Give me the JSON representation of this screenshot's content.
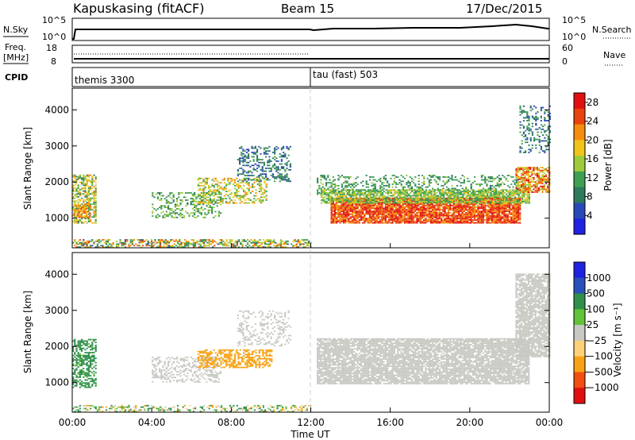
{
  "header": {
    "station": "Kapuskasing (fitACF)",
    "beam": "Beam 15",
    "date": "17/Dec/2015"
  },
  "panels": {
    "nsky": {
      "left_label": "N.Sky",
      "right_label": "N.Search",
      "left_ticks": [
        "10^5",
        "10^0"
      ],
      "right_ticks": [
        "10^5",
        "10^0"
      ]
    },
    "freq": {
      "left_label": "Freq.",
      "left_unit": "[MHz]",
      "right_label": "Nave",
      "left_ticks": [
        "18",
        "8"
      ],
      "right_ticks": [
        "60",
        "0"
      ]
    },
    "cpid": {
      "label": "CPID",
      "modes": [
        "themis 3300",
        "tau (fast) 503"
      ],
      "switch_hour": 12
    }
  },
  "colors": {
    "power": [
      "#1f22e0",
      "#2b48b8",
      "#2d7a5c",
      "#3f9f52",
      "#9ecb3c",
      "#f0c419",
      "#f58d0f",
      "#e8430d",
      "#e10f0f"
    ],
    "velocity": [
      "#e10f0f",
      "#f24e11",
      "#f7a215",
      "#ffd27a",
      "#c9c9c3",
      "#c9c9c3",
      "#62c23a",
      "#2f8f4a",
      "#2b4fb8",
      "#1f22e0"
    ]
  },
  "chart_data": [
    {
      "type": "heatmap",
      "name": "power",
      "ylabel": "Slant Range [km]",
      "yticks": [
        "1000",
        "2000",
        "3000",
        "4000"
      ],
      "ylim": [
        180,
        4600
      ],
      "colorbar_label": "Power [dB]",
      "colorbar_ticks": [
        "4",
        "8",
        "12",
        "16",
        "20",
        "24",
        "28"
      ],
      "clim": [
        0,
        30
      ],
      "regions": [
        {
          "h": [
            0.0,
            1.2
          ],
          "r": [
            850,
            2200
          ],
          "v": [
            8,
            22
          ],
          "d": 0.6
        },
        {
          "h": [
            0.05,
            0.9
          ],
          "r": [
            1000,
            1400
          ],
          "v": [
            18,
            26
          ],
          "d": 0.7
        },
        {
          "h": [
            4.0,
            7.5
          ],
          "r": [
            1000,
            1700
          ],
          "v": [
            8,
            16
          ],
          "d": 0.35
        },
        {
          "h": [
            6.3,
            9.8
          ],
          "r": [
            1400,
            2100
          ],
          "v": [
            10,
            22
          ],
          "d": 0.45
        },
        {
          "h": [
            8.3,
            11.0
          ],
          "r": [
            2000,
            3000
          ],
          "v": [
            4,
            12
          ],
          "d": 0.35
        },
        {
          "h": [
            12.3,
            22.8
          ],
          "r": [
            1600,
            2200
          ],
          "v": [
            8,
            14
          ],
          "d": 0.3
        },
        {
          "h": [
            13.0,
            22.5
          ],
          "r": [
            850,
            1550
          ],
          "v": [
            20,
            30
          ],
          "d": 0.9
        },
        {
          "h": [
            12.5,
            23.0
          ],
          "r": [
            1400,
            1800
          ],
          "v": [
            10,
            18
          ],
          "d": 0.75
        },
        {
          "h": [
            22.3,
            24.0
          ],
          "r": [
            1700,
            2400
          ],
          "v": [
            14,
            28
          ],
          "d": 0.7
        },
        {
          "h": [
            22.5,
            24.0
          ],
          "r": [
            2800,
            4100
          ],
          "v": [
            4,
            12
          ],
          "d": 0.3
        },
        {
          "h": [
            0.0,
            12.0
          ],
          "r": [
            180,
            420
          ],
          "v": [
            6,
            26
          ],
          "d": 0.55
        }
      ]
    },
    {
      "type": "heatmap",
      "name": "velocity",
      "ylabel": "Slant Range [km]",
      "yticks": [
        "1000",
        "2000",
        "3000",
        "4000"
      ],
      "ylim": [
        180,
        4600
      ],
      "colorbar_label": "Velocity [m s⁻¹]",
      "colorbar_ticks": [
        "1000",
        "500",
        "100",
        "25",
        "−25",
        "−100",
        "−500",
        "−1000"
      ],
      "xlabel": "Time UT",
      "xticks": [
        "00:00",
        "04:00",
        "08:00",
        "12:00",
        "16:00",
        "20:00",
        "00:00"
      ],
      "xlim": [
        0,
        24
      ],
      "regions": [
        {
          "h": [
            0.0,
            1.2
          ],
          "r": [
            850,
            2200
          ],
          "v": [
            80,
            300
          ],
          "d": 0.55
        },
        {
          "h": [
            4.0,
            7.5
          ],
          "r": [
            1000,
            1700
          ],
          "v": [
            -20,
            20
          ],
          "d": 0.35
        },
        {
          "h": [
            6.3,
            10.0
          ],
          "r": [
            1400,
            1900
          ],
          "v": [
            -500,
            -150
          ],
          "d": 0.55
        },
        {
          "h": [
            8.3,
            11.0
          ],
          "r": [
            2000,
            3000
          ],
          "v": [
            -20,
            20
          ],
          "d": 0.3
        },
        {
          "h": [
            12.3,
            23.0
          ],
          "r": [
            950,
            2200
          ],
          "v": [
            -20,
            20
          ],
          "d": 0.85
        },
        {
          "h": [
            22.3,
            24.0
          ],
          "r": [
            1700,
            4000
          ],
          "v": [
            -20,
            20
          ],
          "d": 0.8
        },
        {
          "h": [
            0.0,
            12.0
          ],
          "r": [
            180,
            360
          ],
          "v": [
            -200,
            300
          ],
          "d": 0.4
        }
      ]
    }
  ]
}
